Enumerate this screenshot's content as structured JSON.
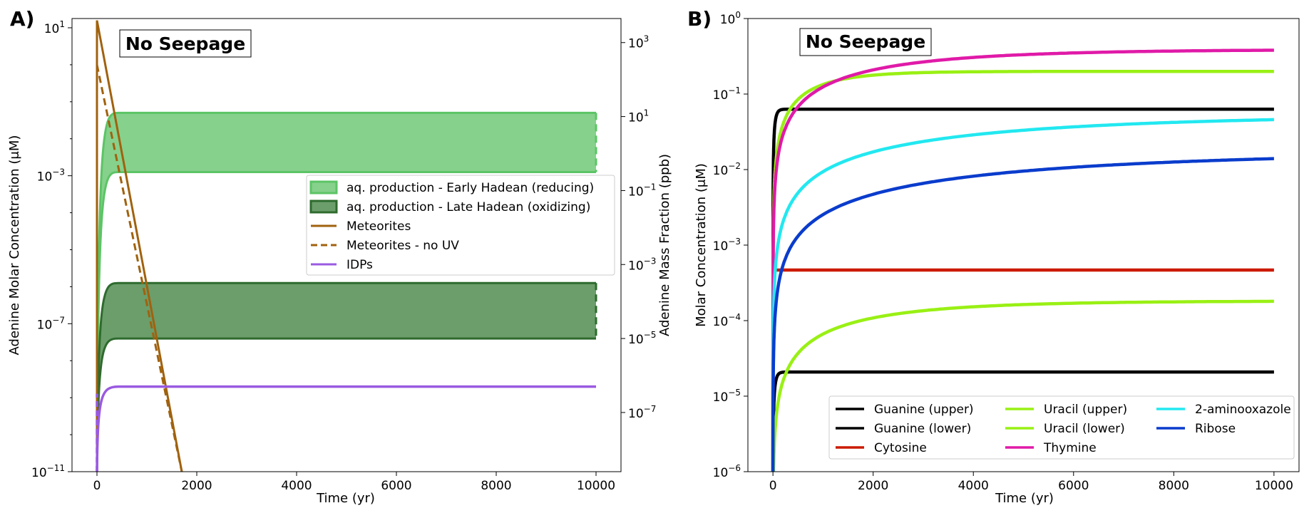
{
  "chart_data": [
    {
      "type": "line",
      "panel_label": "A)",
      "annotation": "No Seepage",
      "xlabel": "Time (yr)",
      "ylabel": "Adenine Molar Concentration (μM)",
      "ylabel_right": "Adenine Mass Fraction (ppb)",
      "xlim": [
        -500,
        10500
      ],
      "ylim_log10": [
        -11,
        1.25
      ],
      "x_ticks": [
        0,
        2000,
        4000,
        6000,
        8000,
        10000
      ],
      "x_tick_labels": [
        "0",
        "2000",
        "4000",
        "6000",
        "8000",
        "10000"
      ],
      "y_ticks": [
        {
          "base": "10",
          "exp": "1",
          "value": 1
        },
        {
          "base": "10",
          "exp": "−3",
          "value": -3
        },
        {
          "base": "10",
          "exp": "−7",
          "value": -7
        },
        {
          "base": "10",
          "exp": "−11",
          "value": -11
        }
      ],
      "right_ticks": [
        {
          "base": "10",
          "exp": "3",
          "value": 0.6
        },
        {
          "base": "10",
          "exp": "1",
          "value": -1.4
        },
        {
          "base": "10",
          "exp": "−1",
          "value": -3.4
        },
        {
          "base": "10",
          "exp": "−3",
          "value": -5.4
        },
        {
          "base": "10",
          "exp": "−5",
          "value": -7.4
        },
        {
          "base": "10",
          "exp": "−7",
          "value": -9.4
        }
      ],
      "bands": [
        {
          "name": "aq. production - Early Hadean (reducing)",
          "upper_log10": -1.3,
          "lower_log10": -2.9,
          "t_end": 10000,
          "fill": "#86d18c",
          "edge": "#5cc466"
        },
        {
          "name": "aq. production - Late Hadean (oxidizing)",
          "upper_log10": -5.9,
          "lower_log10": -7.4,
          "t_end": 10000,
          "fill": "#6b9e6b",
          "edge": "#2e6b2e"
        }
      ],
      "series": [
        {
          "name": "Meteorites",
          "style": "solid",
          "color": "#a0620f",
          "peak_log10": 1.2,
          "decay_end_t": 1700,
          "decay_end_log10": -11
        },
        {
          "name": "Meteorites - no UV",
          "style": "dashed",
          "color": "#a0620f",
          "peak_log10": 0.0,
          "decay_end_t": 1700,
          "decay_end_log10": -11
        },
        {
          "name": "IDPs",
          "style": "solid",
          "color": "#9a5ae0",
          "plateau_log10": -8.7,
          "t_end": 10000
        }
      ],
      "legend": [
        {
          "label": "aq. production - Early Hadean (reducing)",
          "kind": "patch-light"
        },
        {
          "label": "aq. production - Late Hadean (oxidizing)",
          "kind": "patch-dark"
        },
        {
          "label": "Meteorites",
          "kind": "line-solid"
        },
        {
          "label": "Meteorites - no UV",
          "kind": "line-dashed"
        },
        {
          "label": "IDPs",
          "kind": "line-idp"
        }
      ]
    },
    {
      "type": "line",
      "panel_label": "B)",
      "annotation": "No Seepage",
      "xlabel": "Time (yr)",
      "ylabel": "Molar Concentration (μM)",
      "xlim": [
        -500,
        10500
      ],
      "ylim_log10": [
        -6,
        0
      ],
      "x_ticks": [
        0,
        2000,
        4000,
        6000,
        8000,
        10000
      ],
      "x_tick_labels": [
        "0",
        "2000",
        "4000",
        "6000",
        "8000",
        "10000"
      ],
      "y_ticks": [
        {
          "base": "10",
          "exp": "0",
          "value": 0
        },
        {
          "base": "10",
          "exp": "−1",
          "value": -1
        },
        {
          "base": "10",
          "exp": "−2",
          "value": -2
        },
        {
          "base": "10",
          "exp": "−3",
          "value": -3
        },
        {
          "base": "10",
          "exp": "−4",
          "value": -4
        },
        {
          "base": "10",
          "exp": "−5",
          "value": -5
        },
        {
          "base": "10",
          "exp": "−6",
          "value": -6
        }
      ],
      "series": [
        {
          "name": "Guanine (upper)",
          "color": "#000000",
          "final_log10": -1.2,
          "tau": 40
        },
        {
          "name": "Guanine (lower)",
          "color": "#000000",
          "final_log10": -4.68,
          "tau": 40
        },
        {
          "name": "Cytosine",
          "color": "#cc1a00",
          "final_log10": -3.33,
          "tau": 3
        },
        {
          "name": "Uracil (upper)",
          "color": "#99f014",
          "final_log10": -0.7,
          "tau": 900
        },
        {
          "name": "Uracil (lower)",
          "color": "#99f014",
          "final_log10": -3.74,
          "tau": 2200
        },
        {
          "name": "Thymine",
          "color": "#e01aa8",
          "final_log10": -0.41,
          "tau": 2600
        },
        {
          "name": "2-aminooxazole",
          "color": "#22e8f0",
          "final_log10": -1.27,
          "tau": 5200
        },
        {
          "name": "Ribose",
          "color": "#0a3ccc",
          "final_log10": -1.75,
          "tau": 6500
        }
      ],
      "legend_columns": [
        [
          "Guanine (upper)",
          "Guanine (lower)",
          "Cytosine"
        ],
        [
          "Uracil (upper)",
          "Uracil (lower)",
          "Thymine"
        ],
        [
          "2-aminooxazole",
          "Ribose"
        ]
      ]
    }
  ]
}
